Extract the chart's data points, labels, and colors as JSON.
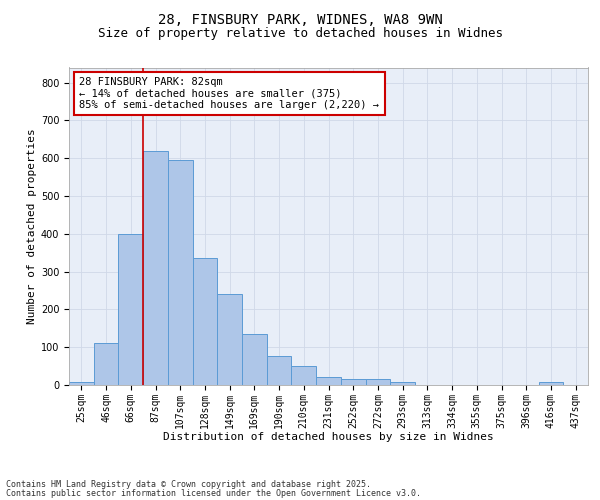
{
  "title_line1": "28, FINSBURY PARK, WIDNES, WA8 9WN",
  "title_line2": "Size of property relative to detached houses in Widnes",
  "xlabel": "Distribution of detached houses by size in Widnes",
  "ylabel": "Number of detached properties",
  "categories": [
    "25sqm",
    "46sqm",
    "66sqm",
    "87sqm",
    "107sqm",
    "128sqm",
    "149sqm",
    "169sqm",
    "190sqm",
    "210sqm",
    "231sqm",
    "252sqm",
    "272sqm",
    "293sqm",
    "313sqm",
    "334sqm",
    "355sqm",
    "375sqm",
    "396sqm",
    "416sqm",
    "437sqm"
  ],
  "values": [
    8,
    110,
    400,
    620,
    595,
    335,
    240,
    135,
    78,
    50,
    20,
    15,
    15,
    8,
    0,
    0,
    0,
    0,
    0,
    8,
    0
  ],
  "bar_color": "#aec6e8",
  "bar_edge_color": "#5b9bd5",
  "vline_color": "#cc0000",
  "annotation_text": "28 FINSBURY PARK: 82sqm\n← 14% of detached houses are smaller (375)\n85% of semi-detached houses are larger (2,220) →",
  "annotation_box_color": "#ffffff",
  "annotation_box_edge": "#cc0000",
  "ylim": [
    0,
    840
  ],
  "yticks": [
    0,
    100,
    200,
    300,
    400,
    500,
    600,
    700,
    800
  ],
  "grid_color": "#d0d8e8",
  "background_color": "#e8eef8",
  "footer_line1": "Contains HM Land Registry data © Crown copyright and database right 2025.",
  "footer_line2": "Contains public sector information licensed under the Open Government Licence v3.0.",
  "title_fontsize": 10,
  "subtitle_fontsize": 9,
  "axis_label_fontsize": 8,
  "tick_fontsize": 7,
  "annotation_fontsize": 7.5,
  "footer_fontsize": 6
}
